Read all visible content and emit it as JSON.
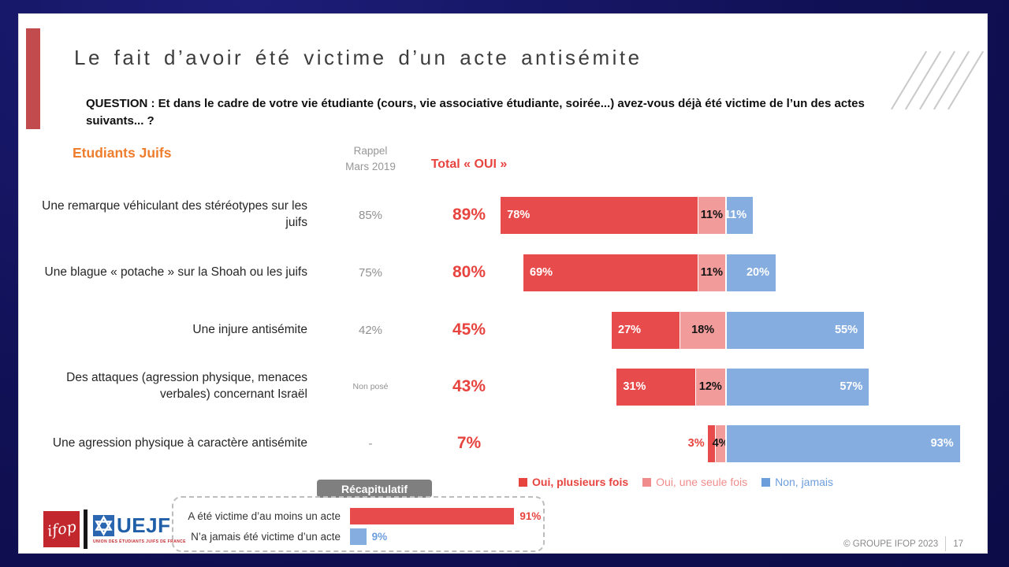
{
  "slide": {
    "title": "Le fait d’avoir été victime d’un acte antisémite",
    "question": "QUESTION : Et dans le cadre de votre vie étudiante (cours, vie associative étudiante, soirée...) avez-vous déjà été victime de l’un des actes suivants... ?",
    "population": "Etudiants Juifs",
    "col_rappel_line1": "Rappel",
    "col_rappel_line2": "Mars 2019",
    "col_total": "Total « OUI »"
  },
  "chart_data": {
    "type": "bar",
    "orientation": "horizontal",
    "stacked": true,
    "unit": "%",
    "series_names": [
      "Oui, plusieurs fois",
      "Oui, une seule fois",
      "Non, jamais"
    ],
    "bar_colors": [
      "#E84B4B",
      "#F29B9B",
      "#85ADE0"
    ],
    "legend": [
      {
        "label": "Oui, plusieurs fois",
        "color": "#E8443F",
        "weight": "700"
      },
      {
        "label": "Oui, une seule fois",
        "color": "#F08D8C",
        "weight": "400"
      },
      {
        "label": "Non, jamais",
        "color": "#6D9EDC",
        "weight": "400"
      }
    ],
    "rows": [
      {
        "label": "Une remarque véhiculant des stéréotypes sur les juifs",
        "rappel": "85%",
        "total_oui": "89%",
        "values": [
          78,
          11,
          11
        ]
      },
      {
        "label": "Une blague « potache » sur la Shoah ou les juifs",
        "rappel": "75%",
        "total_oui": "80%",
        "values": [
          69,
          11,
          20
        ]
      },
      {
        "label": "Une injure antisémite",
        "rappel": "42%",
        "total_oui": "45%",
        "values": [
          27,
          18,
          55
        ]
      },
      {
        "label": "Des attaques (agression physique, menaces verbales) concernant Israël",
        "rappel": "Non posé",
        "total_oui": "43%",
        "values": [
          31,
          12,
          57
        ]
      },
      {
        "label": "Une agression physique à caractère antisémite",
        "rappel": "-",
        "total_oui": "7%",
        "values": [
          3,
          4,
          93
        ]
      }
    ],
    "recap_title": "Récapitulatif",
    "recap_rows": [
      {
        "label": "A été victime d’au moins un acte",
        "value": 91,
        "display": "91%",
        "color": "#E84B4B",
        "text_color": "#E8443F"
      },
      {
        "label": "N’a jamais été victime d’un acte",
        "value": 9,
        "display": "9%",
        "color": "#85ADE0",
        "text_color": "#6D9EDC"
      }
    ]
  },
  "footer": {
    "ifop_text": "ifop",
    "uejf_text": "UEJF",
    "uejf_subtext": "UNION DES ÉTUDIANTS JUIFS DE FRANCE",
    "copyright": "© GROUPE IFOP 2023",
    "page_number": "17"
  }
}
